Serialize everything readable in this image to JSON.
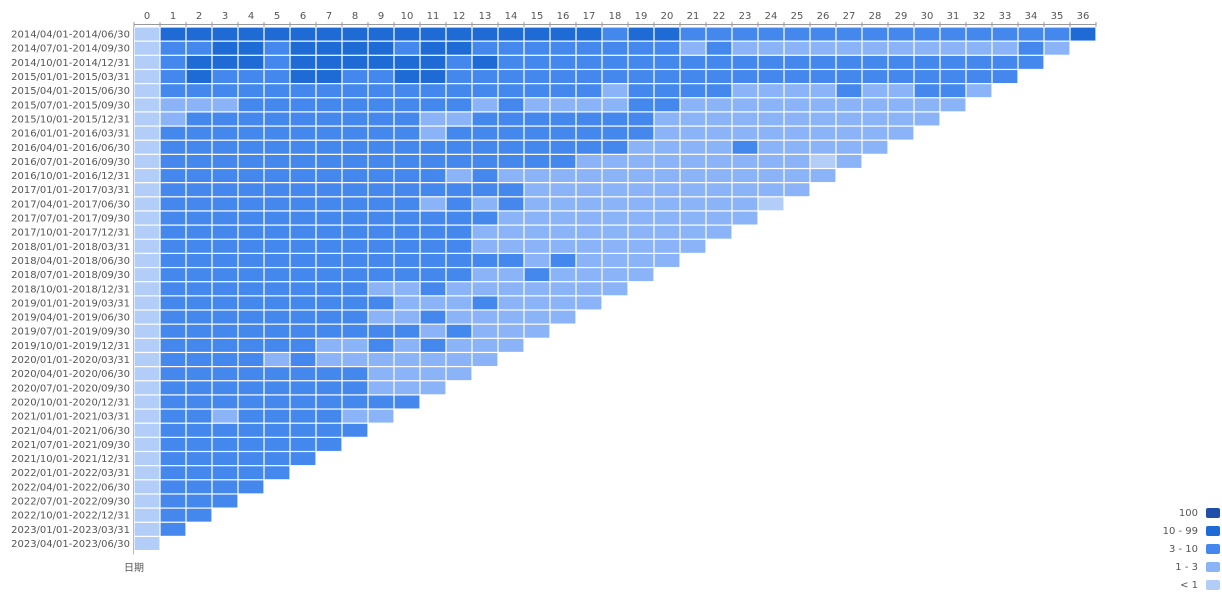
{
  "chart_data": {
    "type": "heatmap",
    "x_label": "",
    "y_axis_caption": "日期",
    "columns": [
      "0",
      "1",
      "2",
      "3",
      "4",
      "5",
      "6",
      "7",
      "8",
      "9",
      "10",
      "11",
      "12",
      "13",
      "14",
      "15",
      "16",
      "17",
      "18",
      "19",
      "20",
      "21",
      "22",
      "23",
      "24",
      "25",
      "26",
      "27",
      "28",
      "29",
      "30",
      "31",
      "32",
      "33",
      "34",
      "35",
      "36"
    ],
    "rows": [
      "2014/04/01-2014/06/30",
      "2014/07/01-2014/09/30",
      "2014/10/01-2014/12/31",
      "2015/01/01-2015/03/31",
      "2015/04/01-2015/06/30",
      "2015/07/01-2015/09/30",
      "2015/10/01-2015/12/31",
      "2016/01/01-2016/03/31",
      "2016/04/01-2016/06/30",
      "2016/07/01-2016/09/30",
      "2016/10/01-2016/12/31",
      "2017/01/01-2017/03/31",
      "2017/04/01-2017/06/30",
      "2017/07/01-2017/09/30",
      "2017/10/01-2017/12/31",
      "2018/01/01-2018/03/31",
      "2018/04/01-2018/06/30",
      "2018/07/01-2018/09/30",
      "2018/10/01-2018/12/31",
      "2019/01/01-2019/03/31",
      "2019/04/01-2019/06/30",
      "2019/07/01-2019/09/30",
      "2019/10/01-2019/12/31",
      "2020/01/01-2020/03/31",
      "2020/04/01-2020/06/30",
      "2020/07/01-2020/09/30",
      "2020/10/01-2020/12/31",
      "2021/01/01-2021/03/31",
      "2021/04/01-2021/06/30",
      "2021/07/01-2021/09/30",
      "2021/10/01-2021/12/31",
      "2022/01/01-2022/03/31",
      "2022/04/01-2022/06/30",
      "2022/07/01-2022/09/30",
      "2022/10/01-2022/12/31",
      "2023/01/01-2023/03/31",
      "2023/04/01-2023/06/30"
    ],
    "legend": [
      {
        "label": "100",
        "color": "#1f4fa8"
      },
      {
        "label": "10 - 99",
        "color": "#1e6bd6"
      },
      {
        "label": "3 - 10",
        "color": "#4488ee"
      },
      {
        "label": "1 - 3",
        "color": "#8ab4f7"
      },
      {
        "label": "< 1",
        "color": "#b3cdf9"
      }
    ],
    "levels_note": "matrix values are legend indices: 0='100', 1='10 - 99', 2='3 - 10', 3='1 - 3', 4='< 1'",
    "matrix": [
      [
        4,
        1,
        1,
        1,
        1,
        1,
        1,
        1,
        1,
        1,
        1,
        1,
        1,
        1,
        1,
        1,
        1,
        1,
        2,
        1,
        1,
        2,
        2,
        2,
        2,
        2,
        2,
        2,
        2,
        2,
        2,
        2,
        2,
        2,
        2,
        2,
        1
      ],
      [
        4,
        2,
        2,
        1,
        1,
        2,
        1,
        1,
        1,
        1,
        2,
        1,
        1,
        2,
        2,
        2,
        2,
        2,
        2,
        2,
        2,
        3,
        2,
        3,
        3,
        3,
        3,
        3,
        3,
        3,
        3,
        3,
        3,
        3,
        2,
        3
      ],
      [
        4,
        2,
        1,
        1,
        1,
        2,
        1,
        1,
        1,
        1,
        1,
        1,
        2,
        1,
        2,
        2,
        2,
        2,
        2,
        2,
        2,
        2,
        2,
        2,
        2,
        2,
        2,
        2,
        2,
        2,
        2,
        2,
        2,
        2,
        2
      ],
      [
        4,
        2,
        1,
        2,
        2,
        2,
        1,
        1,
        2,
        2,
        1,
        1,
        2,
        2,
        2,
        2,
        2,
        2,
        2,
        2,
        2,
        2,
        2,
        2,
        2,
        2,
        2,
        2,
        2,
        2,
        2,
        2,
        2,
        2
      ],
      [
        4,
        2,
        2,
        2,
        2,
        2,
        2,
        2,
        2,
        2,
        2,
        2,
        2,
        2,
        2,
        2,
        2,
        2,
        3,
        2,
        2,
        2,
        2,
        3,
        3,
        3,
        3,
        2,
        3,
        3,
        2,
        2,
        3
      ],
      [
        4,
        3,
        3,
        3,
        2,
        2,
        2,
        2,
        2,
        2,
        2,
        2,
        2,
        3,
        2,
        3,
        3,
        3,
        3,
        2,
        2,
        3,
        3,
        3,
        3,
        3,
        3,
        3,
        3,
        3,
        3,
        3
      ],
      [
        4,
        3,
        2,
        2,
        2,
        2,
        2,
        2,
        2,
        2,
        2,
        3,
        3,
        2,
        2,
        2,
        2,
        2,
        2,
        2,
        3,
        3,
        3,
        3,
        3,
        3,
        3,
        3,
        3,
        3,
        3
      ],
      [
        4,
        2,
        2,
        2,
        2,
        2,
        2,
        2,
        2,
        2,
        2,
        3,
        2,
        2,
        2,
        2,
        2,
        2,
        2,
        2,
        3,
        3,
        3,
        3,
        3,
        3,
        3,
        3,
        3,
        3
      ],
      [
        4,
        2,
        2,
        2,
        2,
        2,
        2,
        2,
        2,
        2,
        2,
        2,
        2,
        2,
        2,
        2,
        2,
        2,
        2,
        3,
        3,
        3,
        3,
        2,
        3,
        3,
        3,
        3,
        3
      ],
      [
        4,
        2,
        2,
        2,
        2,
        2,
        2,
        2,
        2,
        2,
        2,
        2,
        2,
        2,
        2,
        2,
        2,
        3,
        3,
        3,
        3,
        3,
        3,
        3,
        3,
        3,
        4,
        3
      ],
      [
        4,
        2,
        2,
        2,
        2,
        2,
        2,
        2,
        2,
        2,
        2,
        2,
        3,
        2,
        3,
        3,
        3,
        3,
        3,
        3,
        3,
        3,
        3,
        3,
        3,
        3,
        3
      ],
      [
        4,
        2,
        2,
        2,
        2,
        2,
        2,
        2,
        2,
        2,
        2,
        2,
        2,
        2,
        2,
        3,
        3,
        3,
        3,
        3,
        3,
        3,
        3,
        3,
        3,
        3
      ],
      [
        4,
        2,
        2,
        2,
        2,
        2,
        2,
        2,
        2,
        2,
        2,
        3,
        2,
        3,
        2,
        3,
        3,
        3,
        3,
        3,
        3,
        3,
        3,
        3,
        4
      ],
      [
        4,
        2,
        2,
        2,
        2,
        2,
        2,
        2,
        2,
        2,
        2,
        2,
        2,
        2,
        3,
        3,
        3,
        3,
        3,
        3,
        3,
        3,
        3,
        3
      ],
      [
        4,
        2,
        2,
        2,
        2,
        2,
        2,
        2,
        2,
        2,
        2,
        2,
        2,
        3,
        3,
        3,
        3,
        3,
        3,
        3,
        3,
        3,
        3
      ],
      [
        4,
        2,
        2,
        2,
        2,
        2,
        2,
        2,
        2,
        2,
        2,
        2,
        2,
        3,
        3,
        3,
        3,
        3,
        3,
        3,
        3,
        3
      ],
      [
        4,
        2,
        2,
        2,
        2,
        2,
        2,
        2,
        2,
        2,
        2,
        2,
        2,
        2,
        2,
        3,
        2,
        3,
        3,
        3,
        3
      ],
      [
        4,
        2,
        2,
        2,
        2,
        2,
        2,
        2,
        2,
        2,
        2,
        2,
        2,
        3,
        3,
        2,
        3,
        3,
        3,
        3
      ],
      [
        4,
        2,
        2,
        2,
        2,
        2,
        2,
        2,
        2,
        3,
        3,
        2,
        3,
        3,
        3,
        3,
        3,
        3,
        3
      ],
      [
        4,
        2,
        2,
        2,
        2,
        2,
        2,
        2,
        2,
        2,
        3,
        3,
        3,
        2,
        3,
        3,
        3,
        3
      ],
      [
        4,
        2,
        2,
        2,
        2,
        2,
        2,
        2,
        2,
        3,
        3,
        2,
        3,
        3,
        3,
        3,
        3
      ],
      [
        4,
        2,
        2,
        2,
        2,
        2,
        2,
        2,
        2,
        2,
        2,
        3,
        2,
        3,
        3,
        3
      ],
      [
        4,
        2,
        2,
        2,
        2,
        2,
        2,
        3,
        3,
        2,
        3,
        2,
        3,
        3,
        3
      ],
      [
        4,
        2,
        2,
        2,
        2,
        3,
        2,
        3,
        3,
        3,
        3,
        3,
        3,
        3
      ],
      [
        4,
        2,
        2,
        2,
        2,
        2,
        2,
        2,
        2,
        3,
        3,
        3,
        3
      ],
      [
        4,
        2,
        2,
        2,
        2,
        2,
        2,
        2,
        2,
        3,
        3,
        3
      ],
      [
        4,
        2,
        2,
        2,
        2,
        2,
        2,
        2,
        2,
        2,
        2
      ],
      [
        4,
        2,
        2,
        3,
        2,
        2,
        2,
        2,
        3,
        3
      ],
      [
        4,
        2,
        2,
        2,
        2,
        2,
        2,
        2,
        2
      ],
      [
        4,
        2,
        2,
        2,
        2,
        2,
        2,
        2
      ],
      [
        4,
        2,
        2,
        2,
        2,
        2,
        2
      ],
      [
        4,
        2,
        2,
        2,
        2,
        2
      ],
      [
        4,
        2,
        2,
        2,
        2
      ],
      [
        4,
        2,
        2,
        2
      ],
      [
        4,
        2,
        2
      ],
      [
        4,
        2
      ],
      [
        4
      ]
    ]
  }
}
